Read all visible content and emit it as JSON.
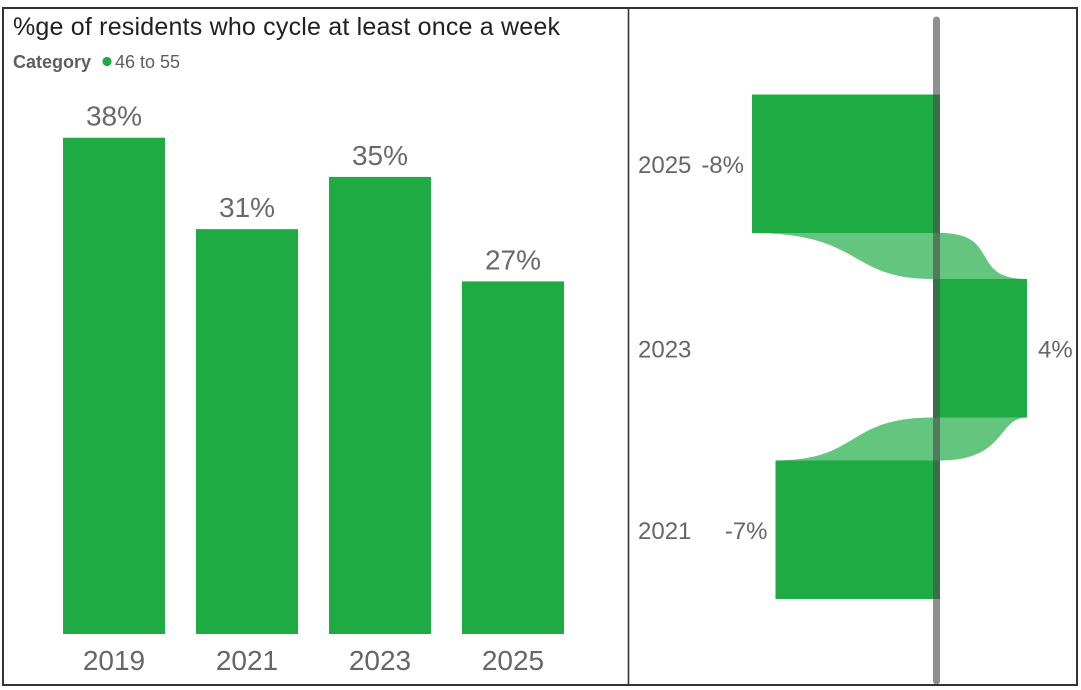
{
  "colors": {
    "bar_green": "#1eab44",
    "connector_green": "#63c57f",
    "connector_opacity": 0.69,
    "axis_gray": "#4a4a4a",
    "axis_opacity": 0.62,
    "border": "#333333",
    "title_text": "#212121",
    "legend_text": "#605e5c",
    "label_text": "#666666"
  },
  "chart_data": [
    {
      "type": "bar",
      "title": "%ge of residents who cycle at least once a week",
      "legend": {
        "title": "Category",
        "entries": [
          "46 to 55"
        ],
        "position": "top-left"
      },
      "categories": [
        "2019",
        "2021",
        "2023",
        "2025"
      ],
      "values": [
        38,
        31,
        35,
        27
      ],
      "data_labels": [
        "38%",
        "31%",
        "35%",
        "27%"
      ],
      "xlabel": "",
      "ylabel": "",
      "ylim": [
        0,
        41
      ],
      "grid": false
    },
    {
      "type": "bar",
      "subtype": "horizontal-change-flow",
      "categories": [
        "2025",
        "2023",
        "2021"
      ],
      "values": [
        -8,
        4,
        -7
      ],
      "data_labels": [
        "-8%",
        "4%",
        "-7%"
      ],
      "xlim": [
        -8,
        4
      ],
      "baseline": 0,
      "grid": false,
      "legend_position": "none"
    }
  ]
}
